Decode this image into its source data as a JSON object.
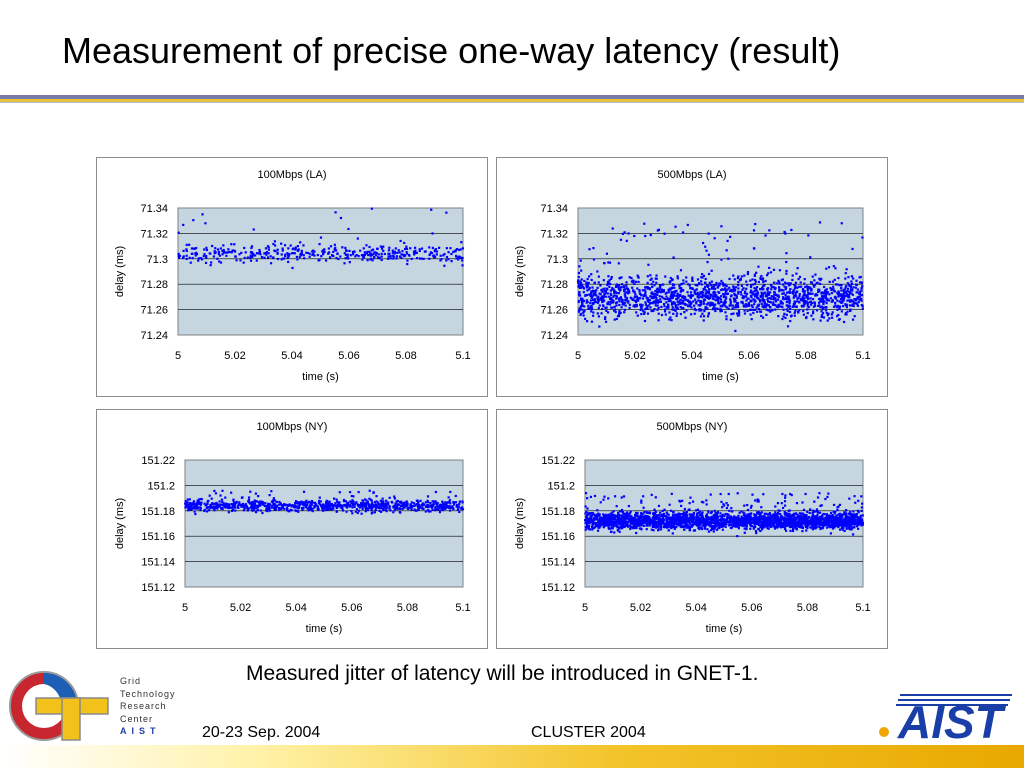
{
  "slide": {
    "title": "Measurement of precise one-way latency (result)",
    "caption": "Measured jitter of latency will be introduced in GNET-1.",
    "footer_date": "20-23 Sep. 2004",
    "footer_conference": "CLUSTER 2004"
  },
  "logos": {
    "gtrc_lines": [
      "Grid",
      "Technology",
      "Research",
      "Center"
    ],
    "gtrc_aist": "AIST",
    "aist": "AIST"
  },
  "colors": {
    "plot_background": "#c5d6e0",
    "marker": "#0000ff",
    "accent_purple": "#7a7aa8",
    "accent_gold": "#e8c23a"
  },
  "chart_data": [
    {
      "type": "scatter",
      "title": "100Mbps (LA)",
      "xlabel": "time (s)",
      "ylabel": "delay (ms)",
      "xlim": [
        5,
        5.1
      ],
      "ylim": [
        71.24,
        71.34
      ],
      "x_ticks": [
        "5",
        "5.02",
        "5.04",
        "5.06",
        "5.08",
        "5.1"
      ],
      "y_ticks": [
        "71.34",
        "71.32",
        "71.3",
        "71.28",
        "71.26",
        "71.24"
      ],
      "grid": true,
      "series": [
        {
          "center": 71.304,
          "spread": 0.006,
          "outlier_max": 71.34,
          "n": 420
        }
      ]
    },
    {
      "type": "scatter",
      "title": "500Mbps (LA)",
      "xlabel": "time (s)",
      "ylabel": "delay (ms)",
      "xlim": [
        5,
        5.1
      ],
      "ylim": [
        71.24,
        71.34
      ],
      "x_ticks": [
        "5",
        "5.02",
        "5.04",
        "5.06",
        "5.08",
        "5.1"
      ],
      "y_ticks": [
        "71.34",
        "71.32",
        "71.3",
        "71.28",
        "71.26",
        "71.24"
      ],
      "grid": true,
      "series": [
        {
          "center": 71.27,
          "spread": 0.015,
          "outlier_max": 71.33,
          "n": 1700
        }
      ]
    },
    {
      "type": "scatter",
      "title": "100Mbps (NY)",
      "xlabel": "time (s)",
      "ylabel": "delay (ms)",
      "xlim": [
        5,
        5.1
      ],
      "ylim": [
        151.12,
        151.22
      ],
      "x_ticks": [
        "5",
        "5.02",
        "5.04",
        "5.06",
        "5.08",
        "5.1"
      ],
      "y_ticks": [
        "151.22",
        "151.2",
        "151.18",
        "151.16",
        "151.14",
        "151.12"
      ],
      "grid": true,
      "series": [
        {
          "center": 151.184,
          "spread": 0.004,
          "outlier_max": 151.196,
          "n": 900
        }
      ]
    },
    {
      "type": "scatter",
      "title": "500Mbps (NY)",
      "xlabel": "time (s)",
      "ylabel": "delay (ms)",
      "xlim": [
        5,
        5.1
      ],
      "ylim": [
        151.12,
        151.22
      ],
      "x_ticks": [
        "5",
        "5.02",
        "5.04",
        "5.06",
        "5.08",
        "5.1"
      ],
      "y_ticks": [
        "151.22",
        "151.2",
        "151.18",
        "151.16",
        "151.14",
        "151.12"
      ],
      "grid": true,
      "series": [
        {
          "center": 151.172,
          "spread": 0.006,
          "outlier_max": 151.194,
          "n": 2600
        }
      ]
    }
  ]
}
